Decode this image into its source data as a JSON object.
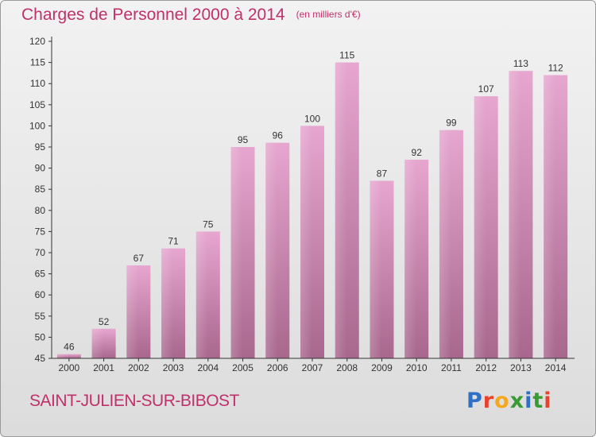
{
  "title": "Charges de Personnel 2000 à 2014",
  "subtitle": "(en milliers d'€)",
  "location": "SAINT-JULIEN-SUR-BIBOST",
  "logo": {
    "text": "Proxiti",
    "letters": [
      "P",
      "r",
      "o",
      "x",
      "i",
      "t",
      "i"
    ],
    "colors": [
      "#2f6fc6",
      "#e8422c",
      "#f3a820",
      "#3a9b35",
      "#2f6fc6",
      "#3a9b35",
      "#e8422c"
    ]
  },
  "colors": {
    "title": "#c0306a",
    "bar_top": "#e6a6cf",
    "bar_bottom": "#a8678d",
    "axis": "#333333"
  },
  "chart_data": {
    "type": "bar",
    "categories": [
      "2000",
      "2001",
      "2002",
      "2003",
      "2004",
      "2005",
      "2006",
      "2007",
      "2008",
      "2009",
      "2010",
      "2011",
      "2012",
      "2013",
      "2014"
    ],
    "values": [
      46,
      52,
      67,
      71,
      75,
      95,
      96,
      100,
      115,
      87,
      92,
      99,
      107,
      113,
      112
    ],
    "ylim": [
      45,
      120
    ],
    "yticks": [
      45,
      50,
      55,
      60,
      65,
      70,
      75,
      80,
      85,
      90,
      95,
      100,
      105,
      110,
      115,
      120
    ],
    "grid": false,
    "title": "Charges de Personnel 2000 à 2014",
    "xlabel": "",
    "ylabel": ""
  }
}
